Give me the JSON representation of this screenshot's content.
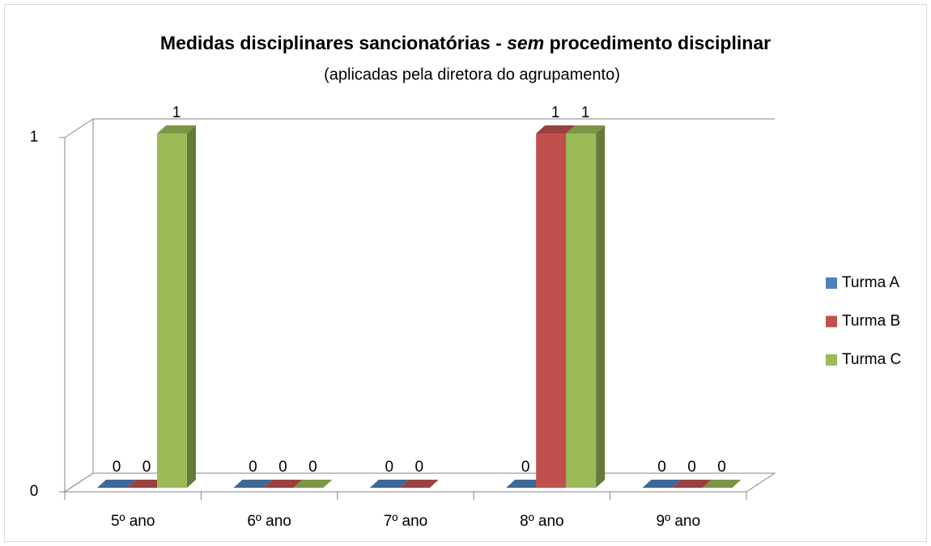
{
  "chart_data": {
    "type": "bar3d",
    "title": [
      "Medidas disciplinares sancionatórias -",
      "sem",
      "procedimento disciplinar"
    ],
    "subtitle": "(aplicadas pela diretora do agrupamento)",
    "categories": [
      "5º ano",
      "6º ano",
      "7º ano",
      "8º ano",
      "9º ano"
    ],
    "series": [
      {
        "name": "Turma A",
        "color": "#4f81bd",
        "values": [
          0,
          0,
          0,
          0,
          0
        ]
      },
      {
        "name": "Turma B",
        "color": "#c0504d",
        "values": [
          0,
          0,
          0,
          1,
          0
        ]
      },
      {
        "name": "Turma C",
        "color": "#9bbb59",
        "values": [
          1,
          0,
          null,
          1,
          0
        ]
      }
    ],
    "ylim": [
      0,
      1
    ],
    "yticks": [
      0,
      1
    ],
    "grid": true,
    "legend": "right"
  }
}
